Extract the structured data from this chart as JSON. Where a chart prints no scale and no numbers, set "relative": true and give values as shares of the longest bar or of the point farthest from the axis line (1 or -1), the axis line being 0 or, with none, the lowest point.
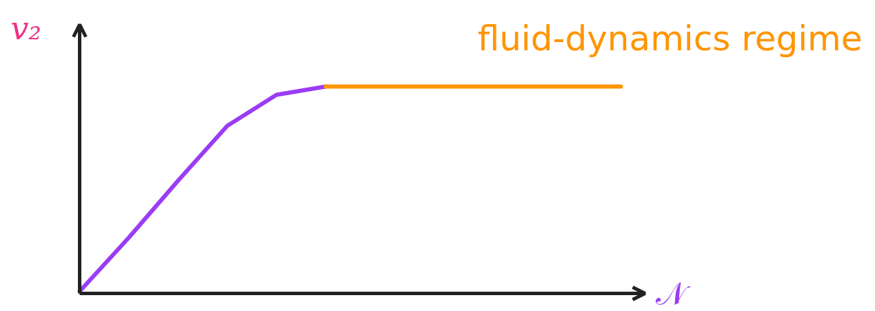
{
  "chart_data": {
    "type": "line",
    "relative": true,
    "xlabel": "𝒩",
    "ylabel": "v₂",
    "categories": [
      null,
      null,
      null,
      null,
      null,
      null,
      null,
      null,
      null,
      null,
      null,
      null
    ],
    "series": [
      {
        "color": "#9b3cf5",
        "values": [
          0.01,
          0.27,
          0.545,
          0.81,
          0.96,
          1,
          null,
          null,
          null,
          null,
          null,
          null
        ]
      },
      {
        "name": "fluid-dynamics regime",
        "color": "#ff9500",
        "values": [
          null,
          null,
          null,
          null,
          null,
          1,
          1,
          1,
          1,
          1,
          1,
          1
        ]
      }
    ]
  }
}
